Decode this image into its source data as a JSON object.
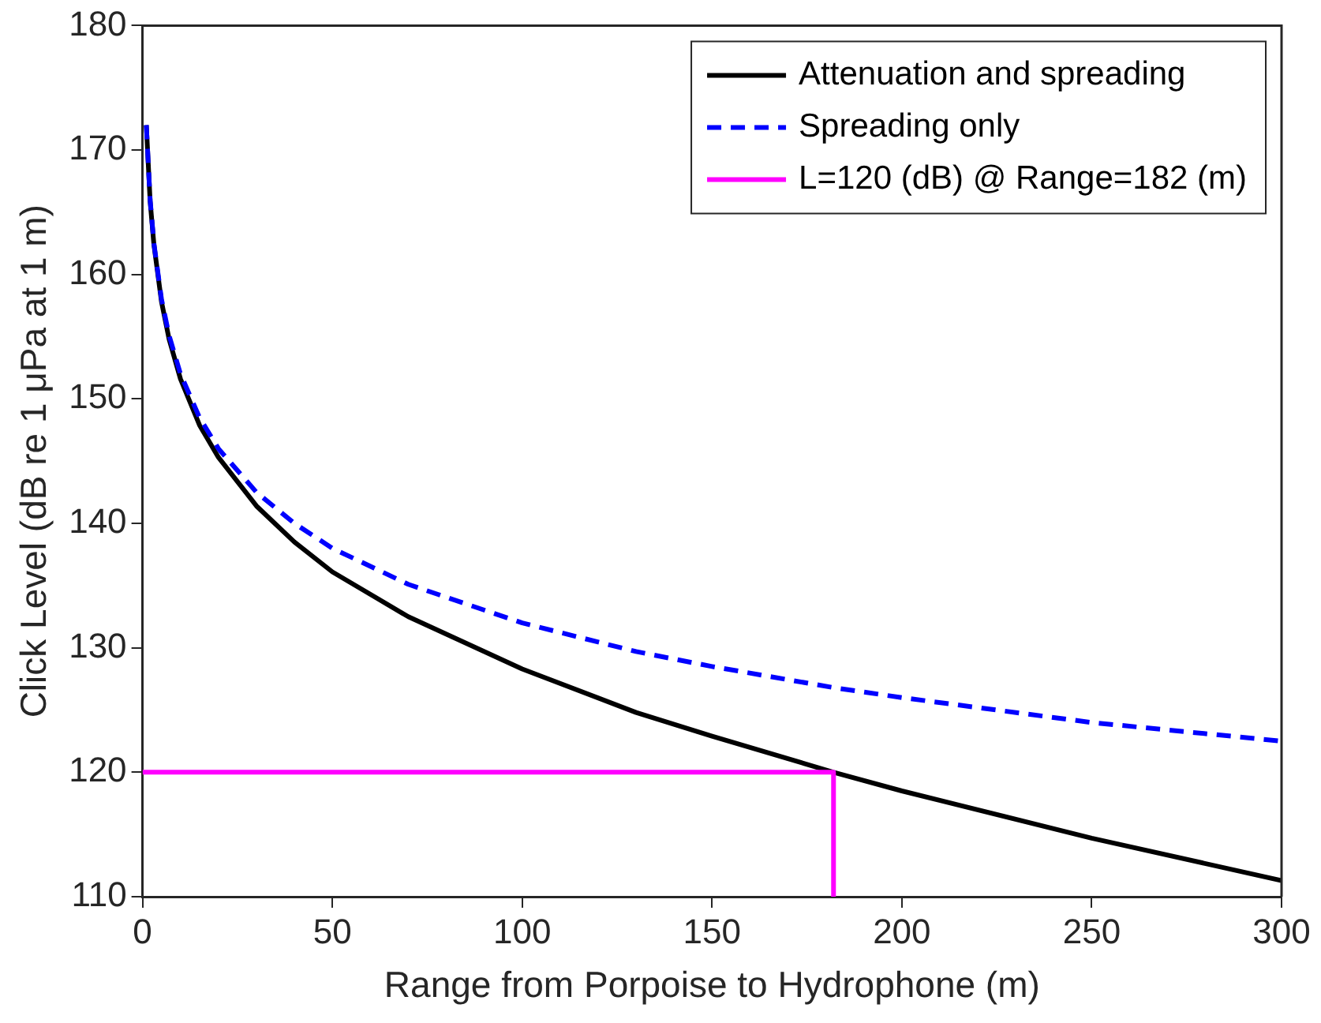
{
  "chart_data": {
    "type": "line",
    "xlabel": "Range from Porpoise to Hydrophone (m)",
    "ylabel": "Click Level (dB re 1 μPa at 1 m)",
    "xlim": [
      0,
      300
    ],
    "xticks": [
      0,
      50,
      100,
      150,
      200,
      250,
      300
    ],
    "ylim": [
      110,
      180
    ],
    "yticks": [
      110,
      120,
      130,
      140,
      150,
      160,
      170,
      180
    ],
    "grid": false,
    "legend": "top right",
    "marker": "none",
    "series": [
      {
        "name": "Attenuation and spreading",
        "color": "#000000",
        "line_style": "solid",
        "x": [
          1,
          2,
          3,
          5,
          7,
          10,
          15,
          20,
          30,
          40,
          50,
          70,
          100,
          130,
          150,
          182,
          200,
          250,
          300
        ],
        "values": [
          172,
          165.9,
          162.4,
          157.8,
          154.8,
          151.6,
          147.9,
          145.3,
          141.4,
          138.5,
          136.1,
          132.5,
          128.3,
          124.8,
          122.9,
          120,
          118.5,
          114.7,
          111.3
        ]
      },
      {
        "name": "Spreading only",
        "color": "#0000ff",
        "line_style": "dashed",
        "x": [
          1,
          2,
          3,
          5,
          7,
          10,
          15,
          20,
          30,
          40,
          50,
          70,
          100,
          130,
          150,
          182,
          200,
          250,
          300
        ],
        "values": [
          172,
          166,
          162.5,
          158,
          155.1,
          152,
          148.5,
          146,
          142.5,
          140,
          138,
          135.1,
          132,
          129.7,
          128.5,
          126.8,
          126,
          124,
          122.5
        ]
      },
      {
        "name": "L=120 (dB) @ Range=182 (m)",
        "color": "#ff00ff",
        "line_style": "solid",
        "x": [
          0,
          182,
          182
        ],
        "values": [
          120,
          120,
          110
        ]
      }
    ]
  }
}
